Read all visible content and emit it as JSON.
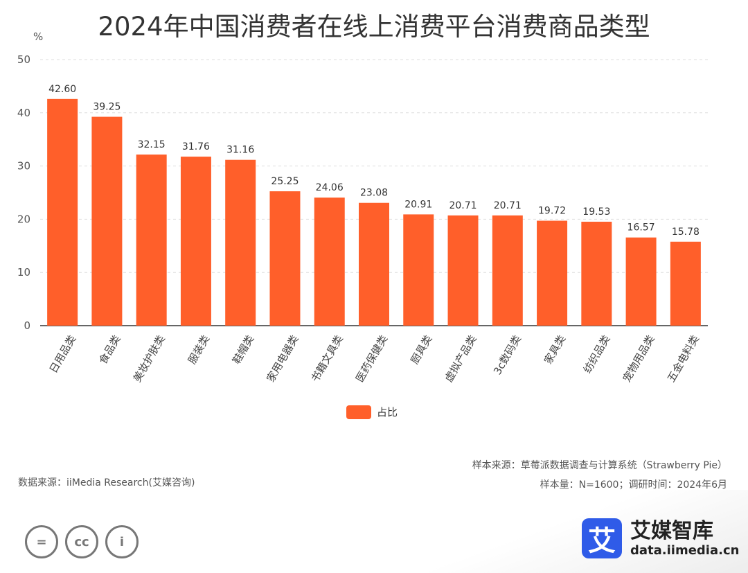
{
  "title": "2024年中国消费者在线上消费平台消费商品类型",
  "unit_label": "%",
  "colors": {
    "bar": "#ff5f2a",
    "grid": "#dddddd",
    "axis": "#333333",
    "brand": "#2f5be8"
  },
  "chart_data": {
    "type": "bar",
    "title": "2024年中国消费者在线上消费平台消费商品类型",
    "ylabel": "%",
    "xlabel": "",
    "ylim": [
      0,
      50
    ],
    "yticks": [
      0,
      10,
      20,
      30,
      40,
      50
    ],
    "grid": true,
    "legend_position": "bottom",
    "categories": [
      "日用品类",
      "食品类",
      "美妆护肤类",
      "服装类",
      "鞋帽类",
      "家用电器类",
      "书籍文具类",
      "医药保健类",
      "厨具类",
      "虚拟产品类",
      "3c数码类",
      "家具类",
      "纺织品类",
      "宠物用品类",
      "五金电料类"
    ],
    "series": [
      {
        "name": "占比",
        "values": [
          42.6,
          39.25,
          32.15,
          31.76,
          31.16,
          25.25,
          24.06,
          23.08,
          20.91,
          20.71,
          20.71,
          19.72,
          19.53,
          16.57,
          15.78
        ],
        "labels": [
          "42.60",
          "39.25",
          "32.15",
          "31.76",
          "31.16",
          "25.25",
          "24.06",
          "23.08",
          "20.91",
          "20.71",
          "20.71",
          "19.72",
          "19.53",
          "16.57",
          "15.78"
        ]
      }
    ]
  },
  "legend": {
    "label": "占比"
  },
  "notes": {
    "sample_source": "样本来源：草莓派数据调查与计算系统（Strawberry Pie）",
    "sample_size": "样本量：N=1600；调研时间：2024年6月"
  },
  "data_source": "数据来源：iiMedia Research(艾媒咨询)",
  "license_icons": [
    "equal-icon",
    "cc-icon",
    "person-icon"
  ],
  "license_glyphs": [
    "=",
    "cc",
    "i"
  ],
  "brand": {
    "logo_char": "艾",
    "name": "艾媒智库",
    "sub": "data.iimedia.cn"
  }
}
